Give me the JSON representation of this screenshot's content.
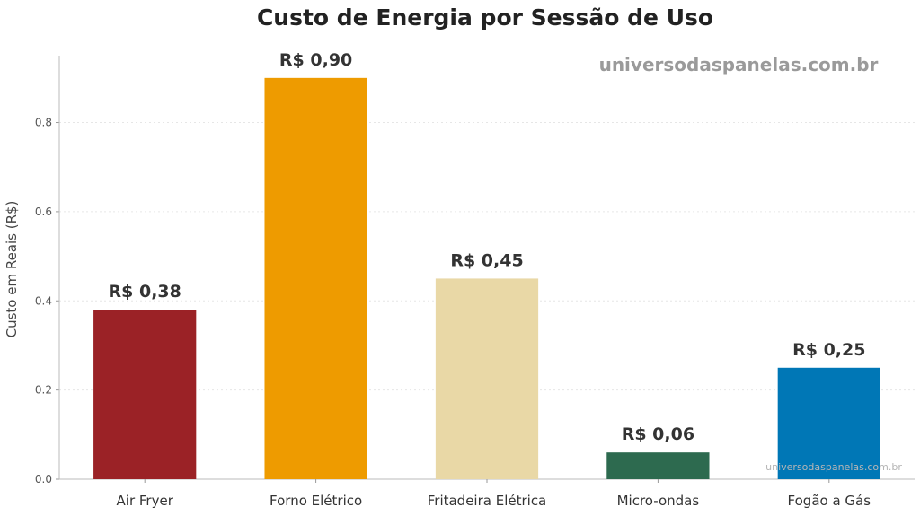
{
  "chart_data": {
    "type": "bar",
    "title": "Custo de Energia por Sessão de Uso",
    "ylabel": "Custo em Reais (R$)",
    "xlabel": "",
    "ylim": [
      0,
      0.95
    ],
    "yticks": [
      0.0,
      0.2,
      0.4,
      0.6,
      0.8
    ],
    "ytick_labels": [
      "0.0",
      "0.2",
      "0.4",
      "0.6",
      "0.8"
    ],
    "grid": true,
    "categories": [
      "Air Fryer",
      "Forno Elétrico",
      "Fritadeira Elétrica",
      "Micro-ondas",
      "Fogão a Gás"
    ],
    "values": [
      0.38,
      0.9,
      0.45,
      0.06,
      0.25
    ],
    "data_labels": [
      "R$ 0,38",
      "R$ 0,90",
      "R$ 0,45",
      "R$ 0,06",
      "R$ 0,25"
    ],
    "colors": [
      "#9B2226",
      "#EE9B00",
      "#E9D8A6",
      "#2D6A4F",
      "#0077B6"
    ]
  },
  "watermark": {
    "main": "universodaspanelas.com.br",
    "corner": "universodaspanelas.com.br"
  }
}
